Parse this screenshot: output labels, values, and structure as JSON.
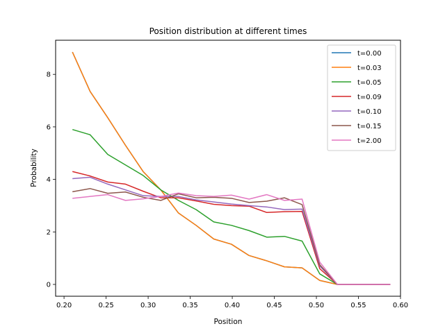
{
  "chart_data": {
    "type": "line",
    "title": "Position distribution at different times",
    "xlabel": "Position",
    "ylabel": "Probability",
    "xlim": [
      0.19,
      0.6
    ],
    "ylim": [
      -0.45,
      9.3
    ],
    "xticks": [
      0.2,
      0.25,
      0.3,
      0.35,
      0.4,
      0.45,
      0.5,
      0.55,
      0.6
    ],
    "xtick_labels": [
      "0.20",
      "0.25",
      "0.30",
      "0.35",
      "0.40",
      "0.45",
      "0.50",
      "0.55",
      "0.60"
    ],
    "yticks": [
      0,
      2,
      4,
      6,
      8
    ],
    "ytick_labels": [
      "0",
      "2",
      "4",
      "6",
      "8"
    ],
    "grid": false,
    "legend_position": "top-right",
    "x": [
      0.21,
      0.231,
      0.252,
      0.273,
      0.294,
      0.315,
      0.336,
      0.357,
      0.378,
      0.399,
      0.42,
      0.441,
      0.462,
      0.483,
      0.504,
      0.525,
      0.546,
      0.567,
      0.588
    ],
    "series": [
      {
        "name": "t=0.00",
        "color": "#1f77b4",
        "values": [
          8.85,
          7.35,
          6.35,
          5.3,
          4.3,
          3.6,
          2.72,
          2.25,
          1.73,
          1.53,
          1.1,
          0.9,
          0.67,
          0.63,
          0.15,
          0,
          0,
          0,
          0
        ]
      },
      {
        "name": "t=0.03",
        "color": "#ff7f0e",
        "values": [
          8.85,
          7.35,
          6.35,
          5.3,
          4.3,
          3.6,
          2.72,
          2.25,
          1.73,
          1.53,
          1.1,
          0.9,
          0.67,
          0.63,
          0.15,
          0,
          0,
          0,
          0
        ]
      },
      {
        "name": "t=0.05",
        "color": "#2ca02c",
        "values": [
          5.9,
          5.7,
          4.95,
          4.55,
          4.15,
          3.6,
          3.2,
          2.85,
          2.38,
          2.25,
          2.05,
          1.8,
          1.83,
          1.65,
          0.4,
          0,
          0,
          0,
          0
        ]
      },
      {
        "name": "t=0.09",
        "color": "#d62728",
        "values": [
          4.3,
          4.13,
          3.9,
          3.82,
          3.55,
          3.3,
          3.3,
          3.18,
          3.05,
          3.0,
          2.98,
          2.74,
          2.77,
          2.78,
          0.6,
          0,
          0,
          0,
          0
        ]
      },
      {
        "name": "t=0.10",
        "color": "#9467bd",
        "values": [
          4.03,
          4.08,
          3.82,
          3.6,
          3.38,
          3.35,
          3.35,
          3.22,
          3.14,
          3.06,
          3.0,
          2.95,
          2.85,
          2.87,
          0.7,
          0,
          0,
          0,
          0
        ]
      },
      {
        "name": "t=0.15",
        "color": "#8c564b",
        "values": [
          3.53,
          3.65,
          3.47,
          3.52,
          3.32,
          3.2,
          3.45,
          3.3,
          3.32,
          3.28,
          3.12,
          3.17,
          3.3,
          3.04,
          0.75,
          0,
          0,
          0,
          0
        ]
      },
      {
        "name": "t=2.00",
        "color": "#e377c2",
        "values": [
          3.28,
          3.35,
          3.42,
          3.2,
          3.26,
          3.35,
          3.48,
          3.38,
          3.35,
          3.4,
          3.25,
          3.42,
          3.2,
          3.25,
          0.85,
          0,
          0,
          0,
          0
        ]
      }
    ]
  }
}
